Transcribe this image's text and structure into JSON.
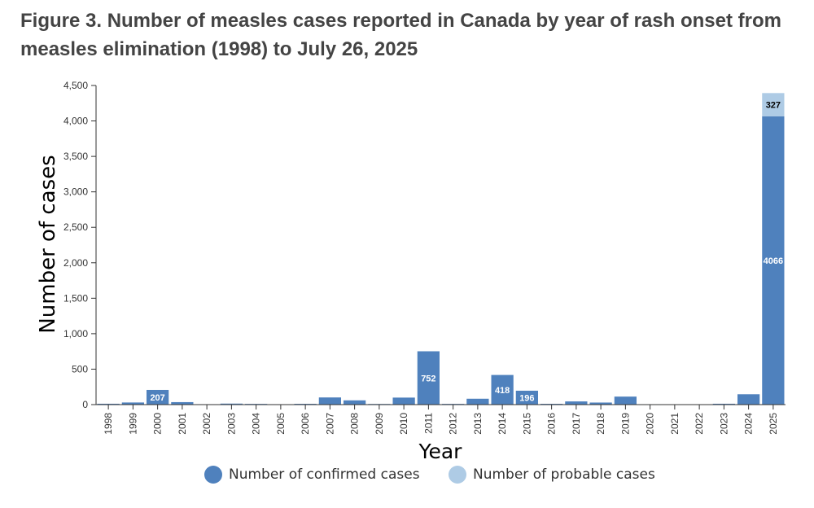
{
  "title": "Figure 3. Number of measles cases reported in Canada by year of rash onset from measles elimination (1998) to July 26, 2025",
  "colors": {
    "confirmed": "#4f81bd",
    "probable": "#aecbe5",
    "axis": "#333333"
  },
  "legend": {
    "confirmed": "Number of confirmed cases",
    "probable": "Number of probable cases"
  },
  "chart_data": {
    "type": "bar",
    "stacked": true,
    "title": "Figure 3. Number of measles cases reported in Canada by year of rash onset from measles elimination (1998) to July 26, 2025",
    "xlabel": "Year",
    "ylabel": "Number of cases",
    "ylim": [
      0,
      4500
    ],
    "yticks": [
      0,
      500,
      1000,
      1500,
      2000,
      2500,
      3000,
      3500,
      4000,
      4500
    ],
    "ytick_labels": [
      "0",
      "500",
      "1,000",
      "1,500",
      "2,000",
      "2,500",
      "3,000",
      "3,500",
      "4,000",
      "4,500"
    ],
    "categories": [
      "1998",
      "1999",
      "2000",
      "2001",
      "2002",
      "2003",
      "2004",
      "2005",
      "2006",
      "2007",
      "2008",
      "2009",
      "2010",
      "2011",
      "2012",
      "2013",
      "2014",
      "2015",
      "2016",
      "2017",
      "2018",
      "2019",
      "2020",
      "2021",
      "2022",
      "2023",
      "2024",
      "2025"
    ],
    "series": [
      {
        "name": "Number of confirmed cases",
        "values": [
          12,
          30,
          207,
          35,
          6,
          14,
          10,
          6,
          11,
          101,
          60,
          9,
          99,
          752,
          10,
          83,
          418,
          196,
          11,
          45,
          29,
          113,
          1,
          0,
          3,
          12,
          146,
          4066
        ],
        "labels": [
          "",
          "",
          "207",
          "",
          "",
          "",
          "",
          "",
          "",
          "",
          "",
          "",
          "",
          "752",
          "",
          "",
          "418",
          "196",
          "",
          "",
          "",
          "",
          "",
          "",
          "",
          "",
          "",
          "4066"
        ]
      },
      {
        "name": "Number of probable cases",
        "values": [
          0,
          0,
          0,
          0,
          0,
          0,
          0,
          0,
          0,
          0,
          0,
          0,
          0,
          0,
          0,
          0,
          0,
          0,
          0,
          0,
          0,
          0,
          0,
          0,
          0,
          0,
          0,
          327
        ],
        "labels": [
          "",
          "",
          "",
          "",
          "",
          "",
          "",
          "",
          "",
          "",
          "",
          "",
          "",
          "",
          "",
          "",
          "",
          "",
          "",
          "",
          "",
          "",
          "",
          "",
          "",
          "",
          "",
          "327"
        ]
      }
    ],
    "grid": false,
    "legend_position": "bottom"
  }
}
